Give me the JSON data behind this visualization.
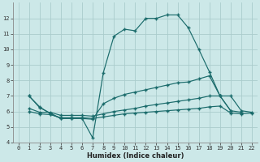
{
  "xlabel": "Humidex (Indice chaleur)",
  "bg_color": "#cce8e8",
  "grid_color": "#aacccc",
  "line_color": "#1a6b6b",
  "ylim": [
    4,
    13
  ],
  "xlim": [
    -0.5,
    22.5
  ],
  "yticks": [
    4,
    5,
    6,
    7,
    8,
    9,
    10,
    11,
    12
  ],
  "xticks": [
    0,
    1,
    2,
    3,
    4,
    5,
    6,
    7,
    8,
    9,
    10,
    11,
    12,
    13,
    14,
    15,
    16,
    17,
    18,
    19,
    20,
    21,
    22
  ],
  "line1_x": [
    1,
    2,
    3,
    4,
    5,
    6,
    7,
    8,
    9,
    10,
    11,
    12,
    13,
    14,
    15,
    16,
    17,
    18,
    19,
    20,
    21
  ],
  "line1_y": [
    7.0,
    6.3,
    5.85,
    5.55,
    5.55,
    5.55,
    4.3,
    8.5,
    10.85,
    11.3,
    11.2,
    12.0,
    12.0,
    12.22,
    12.22,
    11.4,
    10.0,
    8.55,
    7.0,
    6.05,
    5.95
  ],
  "line2_x": [
    1,
    2,
    3,
    4,
    5,
    6,
    7,
    8,
    9,
    10,
    11,
    12,
    13,
    14,
    15,
    16,
    17,
    18,
    19,
    20
  ],
  "line2_y": [
    7.0,
    6.25,
    5.9,
    5.55,
    5.55,
    5.55,
    5.5,
    6.5,
    6.85,
    7.1,
    7.25,
    7.4,
    7.55,
    7.7,
    7.85,
    7.9,
    8.1,
    8.3,
    7.0,
    6.05
  ],
  "line3_x": [
    1,
    2,
    3,
    4,
    5,
    6,
    7,
    8,
    9,
    10,
    11,
    12,
    13,
    14,
    15,
    16,
    17,
    18,
    19,
    20,
    21,
    22
  ],
  "line3_y": [
    6.2,
    5.95,
    5.95,
    5.75,
    5.75,
    5.75,
    5.7,
    5.85,
    6.0,
    6.1,
    6.2,
    6.35,
    6.45,
    6.55,
    6.65,
    6.75,
    6.85,
    7.0,
    7.0,
    7.0,
    6.05,
    5.95
  ],
  "line4_x": [
    1,
    2,
    3,
    4,
    5,
    6,
    7,
    8,
    9,
    10,
    11,
    12,
    13,
    14,
    15,
    16,
    17,
    18,
    19,
    20,
    21,
    22
  ],
  "line4_y": [
    6.0,
    5.85,
    5.8,
    5.6,
    5.6,
    5.6,
    5.55,
    5.65,
    5.75,
    5.85,
    5.9,
    5.95,
    6.0,
    6.05,
    6.1,
    6.15,
    6.2,
    6.3,
    6.35,
    5.9,
    5.85,
    5.9
  ]
}
